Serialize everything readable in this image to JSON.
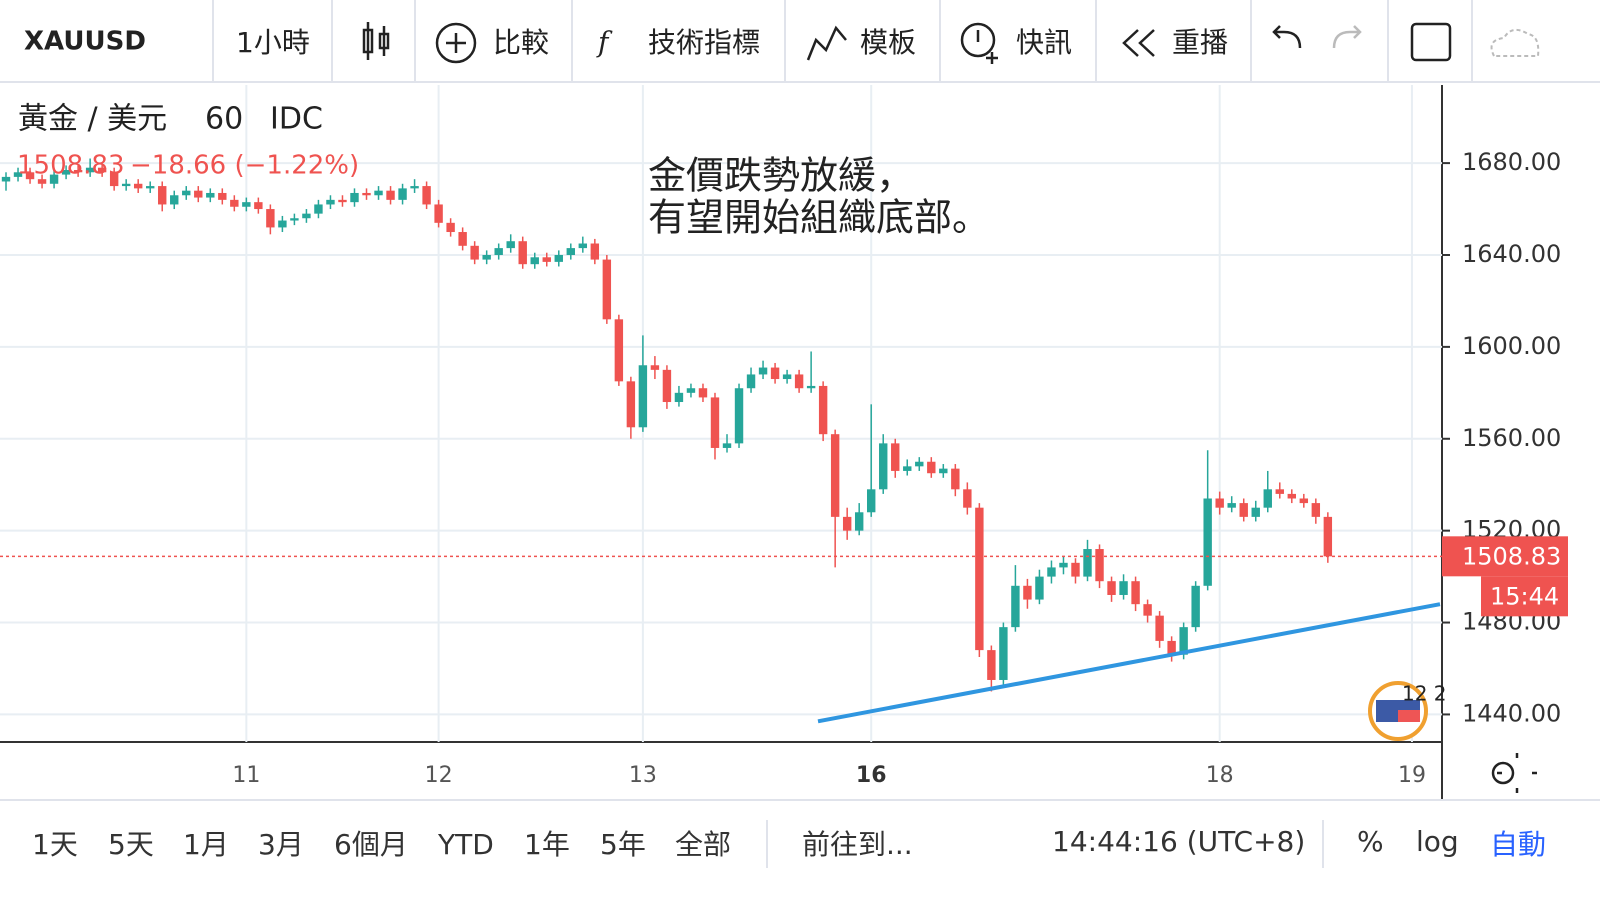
{
  "toolbar": {
    "symbol": "XAUUSD",
    "interval": "1小時",
    "buttons": [
      "比較",
      "技術指標",
      "模板",
      "快訊",
      "重播"
    ]
  },
  "chart_data": {
    "type": "candlestick",
    "name": "黃金 / 美元",
    "resolution": "60",
    "source": "IDC",
    "change": "−18.66 (−1.22%)",
    "annotation": [
      "金價跌勢放緩，",
      "有望開始組織底部。"
    ],
    "countdown": "15:44",
    "up_color": "#26a69a",
    "down_color": "#ef5350",
    "categories": [
      null,
      null,
      null,
      null,
      null,
      null,
      null,
      null,
      null,
      null,
      null,
      null,
      null,
      null,
      null,
      null,
      null,
      null,
      null,
      null,
      "11",
      null,
      null,
      null,
      null,
      null,
      null,
      null,
      null,
      null,
      null,
      null,
      null,
      null,
      null,
      null,
      "12",
      null,
      null,
      null,
      null,
      null,
      null,
      null,
      null,
      null,
      null,
      null,
      null,
      null,
      null,
      null,
      null,
      "13",
      null,
      null,
      null,
      null,
      null,
      null,
      null,
      null,
      null,
      null,
      null,
      null,
      null,
      null,
      null,
      null,
      null,
      null,
      "16",
      null,
      null,
      null,
      null,
      null,
      null,
      null,
      null,
      null,
      null,
      null,
      null,
      null,
      null,
      null,
      null,
      null,
      null,
      null,
      null,
      null,
      null,
      null,
      null,
      null,
      null,
      null,
      null,
      "18",
      null,
      null,
      null,
      null,
      null,
      null,
      null,
      null,
      null,
      null,
      null,
      null,
      null,
      null,
      null,
      "19",
      null,
      null
    ],
    "open": [
      1672,
      1674,
      1676,
      1673,
      1671,
      1675,
      1677,
      1676,
      1678,
      1676,
      1670,
      1671,
      1669,
      1670,
      1662,
      1666,
      1668,
      1665,
      1667,
      1664,
      1661,
      1663,
      1660,
      1652,
      1655,
      1656,
      1658,
      1662,
      1664,
      1663,
      1667,
      1666,
      1668,
      1664,
      1669,
      1670,
      1662,
      1654,
      1650,
      1644,
      1638,
      1640,
      1643,
      1646,
      1636,
      1639,
      1637,
      1640,
      1643,
      1645,
      1638,
      1612,
      1585,
      1565,
      1592,
      1590,
      1576,
      1580,
      1582,
      1578,
      1556,
      1558,
      1582,
      1588,
      1591,
      1586,
      1588,
      1582,
      1583,
      1562,
      1526,
      1520,
      1528,
      1538,
      1558,
      1546,
      1548,
      1550,
      1545,
      1547,
      1538,
      1530,
      1468,
      1455,
      1478,
      1496,
      1490,
      1500,
      1504,
      1506,
      1500,
      1512,
      1498,
      1492,
      1498,
      1488,
      1483,
      1472,
      1466,
      1478,
      1496,
      1534,
      1530,
      1532,
      1526,
      1530,
      1538,
      1536,
      1534,
      1532,
      1526,
      null,
      null,
      null,
      null,
      null,
      null,
      null,
      null,
      null
    ],
    "high": [
      1676,
      1678,
      1678,
      1675,
      1677,
      1679,
      1679,
      1682,
      1680,
      1678,
      1673,
      1673,
      1672,
      1672,
      1668,
      1670,
      1670,
      1669,
      1669,
      1666,
      1665,
      1665,
      1662,
      1657,
      1658,
      1660,
      1664,
      1666,
      1666,
      1669,
      1669,
      1670,
      1670,
      1671,
      1673,
      1672,
      1664,
      1656,
      1652,
      1646,
      1642,
      1645,
      1649,
      1648,
      1641,
      1641,
      1642,
      1645,
      1648,
      1647,
      1640,
      1614,
      1587,
      1605,
      1596,
      1592,
      1583,
      1584,
      1584,
      1580,
      1562,
      1584,
      1591,
      1594,
      1593,
      1590,
      1590,
      1598,
      1585,
      1564,
      1530,
      1532,
      1575,
      1562,
      1560,
      1551,
      1552,
      1552,
      1549,
      1549,
      1541,
      1532,
      1470,
      1480,
      1505,
      1499,
      1503,
      1507,
      1509,
      1508,
      1516,
      1514,
      1500,
      1501,
      1500,
      1490,
      1485,
      1474,
      1480,
      1498,
      1555,
      1537,
      1535,
      1534,
      1533,
      1546,
      1541,
      1538,
      1536,
      1534,
      1528,
      null,
      null,
      null,
      null,
      null,
      null,
      null,
      null,
      null
    ],
    "low": [
      1668,
      1672,
      1671,
      1669,
      1669,
      1673,
      1674,
      1674,
      1674,
      1668,
      1668,
      1667,
      1667,
      1659,
      1660,
      1664,
      1663,
      1663,
      1662,
      1659,
      1659,
      1658,
      1649,
      1650,
      1653,
      1654,
      1656,
      1660,
      1661,
      1661,
      1664,
      1664,
      1662,
      1662,
      1667,
      1660,
      1652,
      1648,
      1642,
      1636,
      1636,
      1638,
      1641,
      1634,
      1634,
      1635,
      1635,
      1638,
      1641,
      1636,
      1610,
      1583,
      1560,
      1563,
      1586,
      1573,
      1574,
      1578,
      1576,
      1551,
      1554,
      1556,
      1580,
      1586,
      1584,
      1584,
      1580,
      1580,
      1559,
      1504,
      1516,
      1518,
      1526,
      1536,
      1543,
      1544,
      1546,
      1543,
      1543,
      1535,
      1527,
      1465,
      1450,
      1452,
      1476,
      1486,
      1488,
      1497,
      1501,
      1497,
      1498,
      1495,
      1489,
      1490,
      1485,
      1480,
      1469,
      1463,
      1464,
      1476,
      1494,
      1527,
      1528,
      1524,
      1524,
      1528,
      1534,
      1532,
      1530,
      1523,
      1506,
      null,
      null,
      null,
      null,
      null,
      null,
      null,
      null,
      null
    ],
    "close": [
      1674,
      1676,
      1673,
      1671,
      1675,
      1677,
      1676,
      1678,
      1676,
      1670,
      1671,
      1669,
      1670,
      1662,
      1666,
      1668,
      1665,
      1667,
      1664,
      1661,
      1663,
      1660,
      1652,
      1655,
      1656,
      1658,
      1662,
      1664,
      1663,
      1667,
      1666,
      1668,
      1664,
      1669,
      1670,
      1662,
      1654,
      1650,
      1644,
      1638,
      1640,
      1643,
      1646,
      1636,
      1639,
      1637,
      1640,
      1643,
      1645,
      1638,
      1612,
      1585,
      1565,
      1592,
      1590,
      1576,
      1580,
      1582,
      1578,
      1556,
      1558,
      1582,
      1588,
      1591,
      1586,
      1588,
      1582,
      1583,
      1562,
      1526,
      1520,
      1528,
      1538,
      1558,
      1546,
      1548,
      1550,
      1545,
      1547,
      1538,
      1530,
      1468,
      1455,
      1478,
      1496,
      1490,
      1500,
      1504,
      1506,
      1500,
      1512,
      1498,
      1492,
      1498,
      1488,
      1483,
      1472,
      1466,
      1478,
      1496,
      1534,
      1530,
      1532,
      1526,
      1530,
      1538,
      1536,
      1534,
      1532,
      1526,
      1508.83,
      null,
      null,
      null,
      null,
      null,
      null,
      null,
      null,
      null
    ],
    "trendline": {
      "values": [
        1437,
        1488
      ],
      "color": "#2f96e0"
    },
    "ylim": [
      1428,
      1714
    ],
    "yticks": [
      {
        "value": 1440,
        "label": "1440.00"
      },
      {
        "value": 1480,
        "label": "1480.00"
      },
      {
        "value": 1520,
        "label": "1520.00"
      },
      {
        "value": 1560,
        "label": "1560.00"
      },
      {
        "value": 1600,
        "label": "1600.00"
      },
      {
        "value": 1640,
        "label": "1640.00"
      },
      {
        "value": 1680,
        "label": "1680.00"
      }
    ],
    "grid": true
  },
  "bottom_bar": {
    "ranges": [
      "1天",
      "5天",
      "1月",
      "3月",
      "6個月",
      "YTD",
      "1年",
      "5年",
      "全部"
    ],
    "goto": "前往到...",
    "time": "14:44:16 (UTC+8)",
    "percent": "%",
    "log": "log",
    "auto": "自動"
  }
}
